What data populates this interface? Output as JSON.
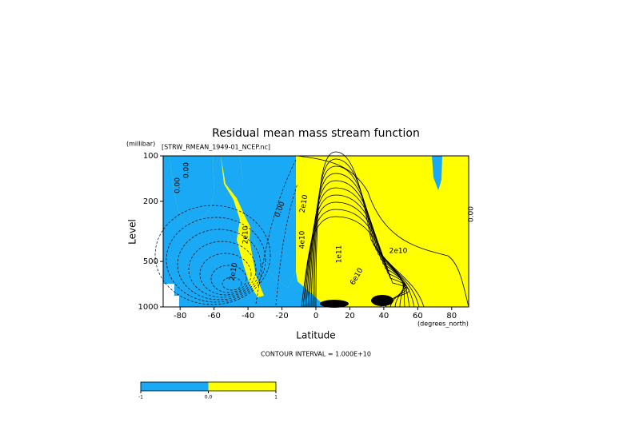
{
  "chart_data": {
    "type": "contour",
    "title": "Residual mean mass stream function",
    "subtitle": "[STRW_RMEAN_1949-01_NCEP.nc]",
    "y_unit": "(millibar)",
    "ylabel": "Level",
    "xlabel": "Latitude",
    "x_unit": "(degrees_north)",
    "footnote": "CONTOUR INTERVAL = 1.000E+10",
    "xlim": [
      -90,
      90
    ],
    "xticks": [
      -80,
      -60,
      -40,
      -20,
      0,
      20,
      40,
      60,
      80
    ],
    "ylim": [
      1000,
      100
    ],
    "yticks": [
      1000,
      500,
      200,
      100
    ],
    "log_y": true,
    "colors": {
      "negative": "#1aa9f5",
      "positive": "#ffff00"
    },
    "contour_labels": [
      {
        "value": 0,
        "label": "0.00"
      },
      {
        "value": 0,
        "label": "0.00"
      },
      {
        "value": 0,
        "label": "0.00"
      },
      {
        "value": 20000000000,
        "label": "2e10"
      },
      {
        "value": 20000000000,
        "label": "2e10"
      },
      {
        "value": 20000000000,
        "label": "2e10"
      },
      {
        "value": 40000000000,
        "label": "4e10"
      },
      {
        "value": 100000000000,
        "label": "1e11"
      },
      {
        "value": 60000000000,
        "label": "6e10"
      },
      {
        "value": 20000000000,
        "label": "2e10"
      },
      {
        "value": 0,
        "label": "0.00"
      }
    ],
    "colorbar": {
      "labels": [
        "-1",
        "0.0",
        "1"
      ]
    }
  }
}
